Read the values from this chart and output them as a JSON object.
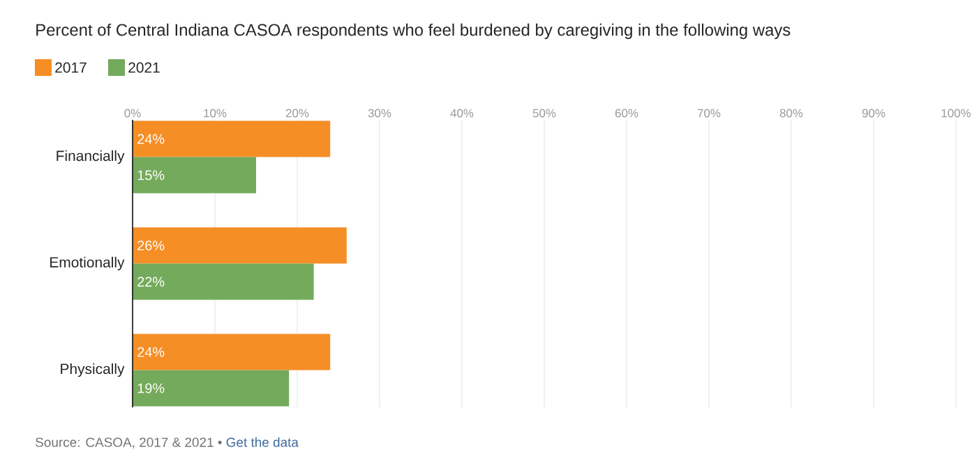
{
  "chart_data": {
    "type": "bar",
    "orientation": "horizontal",
    "title": "Percent of Central Indiana CASOA respondents who feel burdened by caregiving in the following ways",
    "categories": [
      "Financially",
      "Emotionally",
      "Physically"
    ],
    "series": [
      {
        "name": "2017",
        "color": "#f68e26",
        "values": [
          24,
          26,
          24
        ],
        "value_labels": [
          "24%",
          "26%",
          "24%"
        ]
      },
      {
        "name": "2021",
        "color": "#74aa5c",
        "values": [
          15,
          22,
          19
        ],
        "value_labels": [
          "15%",
          "22%",
          "19%"
        ]
      }
    ],
    "xlim": [
      0,
      100
    ],
    "xticks": [
      {
        "value": 0,
        "label": "0%"
      },
      {
        "value": 10,
        "label": "10%"
      },
      {
        "value": 20,
        "label": "20%"
      },
      {
        "value": 30,
        "label": "30%"
      },
      {
        "value": 40,
        "label": "40%"
      },
      {
        "value": 50,
        "label": "50%"
      },
      {
        "value": 60,
        "label": "60%"
      },
      {
        "value": 70,
        "label": "70%"
      },
      {
        "value": 80,
        "label": "80%"
      },
      {
        "value": 90,
        "label": "90%"
      },
      {
        "value": 100,
        "label": "100%"
      }
    ],
    "grid": "x",
    "legend": "top left",
    "annotations": [
      "Source: CASOA, 2017 & 2021 •",
      "Get the data"
    ]
  }
}
